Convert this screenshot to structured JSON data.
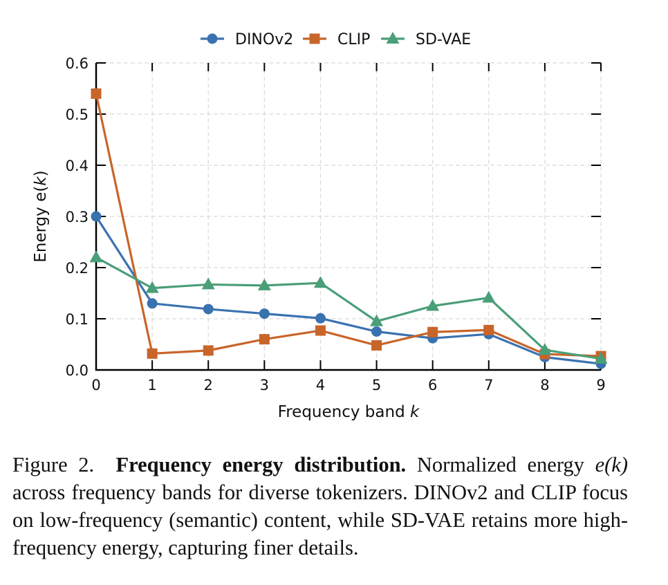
{
  "chart_data": {
    "type": "line",
    "title": "",
    "xlabel": "Frequency band",
    "xlabel_var": "k",
    "ylabel": "Energy e(",
    "ylabel_var": "k",
    "ylabel_close": ")",
    "x": [
      0,
      1,
      2,
      3,
      4,
      5,
      6,
      7,
      8,
      9
    ],
    "xlim": [
      0,
      9
    ],
    "ylim": [
      0.0,
      0.6
    ],
    "yticks": [
      "0.0",
      "0.1",
      "0.2",
      "0.3",
      "0.4",
      "0.5",
      "0.6"
    ],
    "xticks": [
      "0",
      "1",
      "2",
      "3",
      "4",
      "5",
      "6",
      "7",
      "8",
      "9"
    ],
    "grid": true,
    "legend_position": "top-center",
    "series": [
      {
        "name": "DINOv2",
        "color": "#3a72b0",
        "marker": "circle",
        "values": [
          0.3,
          0.13,
          0.119,
          0.11,
          0.101,
          0.075,
          0.062,
          0.07,
          0.025,
          0.012
        ]
      },
      {
        "name": "CLIP",
        "color": "#c8652a",
        "marker": "square",
        "values": [
          0.54,
          0.032,
          0.038,
          0.06,
          0.077,
          0.048,
          0.074,
          0.078,
          0.031,
          0.027
        ]
      },
      {
        "name": "SD-VAE",
        "color": "#4a9e78",
        "marker": "triangle",
        "values": [
          0.22,
          0.16,
          0.167,
          0.165,
          0.17,
          0.095,
          0.125,
          0.141,
          0.039,
          0.022
        ]
      }
    ]
  },
  "caption": {
    "prefix": "Figure 2.",
    "title": "Frequency energy distribution.",
    "text_1": " Normalized energy ",
    "math": "e(k)",
    "text_2": " across frequency bands for diverse tokenizers. DINOv2 and CLIP focus on low-frequency (semantic) content, while SD-VAE retains more high-frequency energy, capturing finer details."
  }
}
